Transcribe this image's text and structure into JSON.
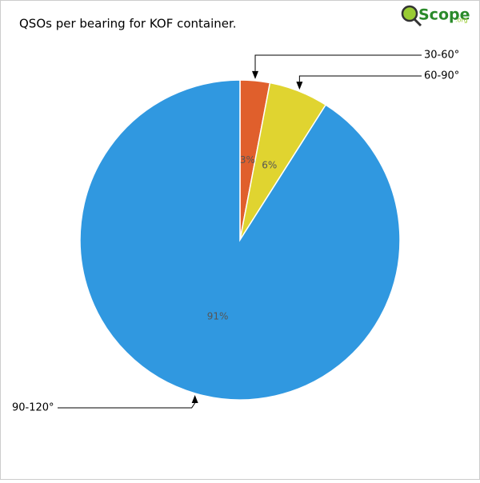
{
  "chart_data": {
    "type": "pie",
    "title": "QSOs per bearing for KOF container.",
    "logo": "Scope",
    "logo_suffix": ".org",
    "categories": [
      "30-60°",
      "60-90°",
      "90-120°"
    ],
    "values": [
      3,
      6,
      91
    ],
    "value_labels": [
      "3%",
      "6%",
      "91%"
    ],
    "colors": [
      "#e05f2c",
      "#e0d430",
      "#3098e0"
    ]
  }
}
